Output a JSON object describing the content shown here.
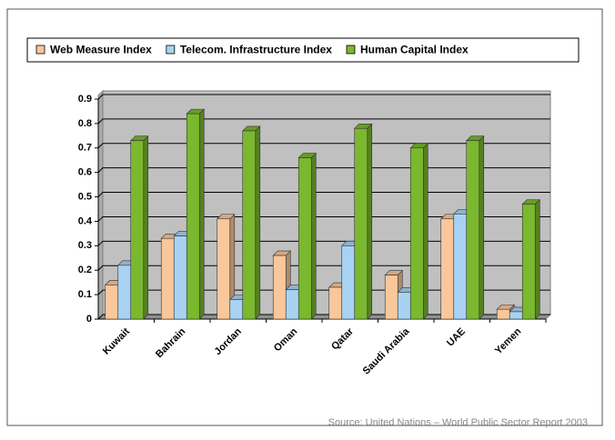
{
  "chart_data": {
    "type": "bar3d",
    "categories": [
      "Kuwait",
      "Bahrain",
      "Jordan",
      "Oman",
      "Qatar",
      "Saudi Arabia",
      "UAE",
      "Yemen"
    ],
    "series": [
      {
        "name": "Web Measure Index",
        "color": "#f9c79a",
        "values": [
          0.14,
          0.33,
          0.41,
          0.26,
          0.13,
          0.18,
          0.41,
          0.04
        ]
      },
      {
        "name": "Telecom. Infrastructure Index",
        "color": "#a8d2f2",
        "values": [
          0.22,
          0.34,
          0.08,
          0.12,
          0.3,
          0.11,
          0.43,
          0.03
        ]
      },
      {
        "name": "Human Capital Index",
        "color": "#7ab82e",
        "values": [
          0.73,
          0.84,
          0.77,
          0.66,
          0.78,
          0.7,
          0.73,
          0.47
        ]
      }
    ],
    "ylim": [
      0,
      0.9
    ],
    "yticks": [
      0,
      0.1,
      0.2,
      0.3,
      0.4,
      0.5,
      0.6,
      0.7,
      0.8,
      0.9
    ],
    "grid": true,
    "legend": "top",
    "source": "Source: United Nations – World Public Sector Report 2003"
  }
}
